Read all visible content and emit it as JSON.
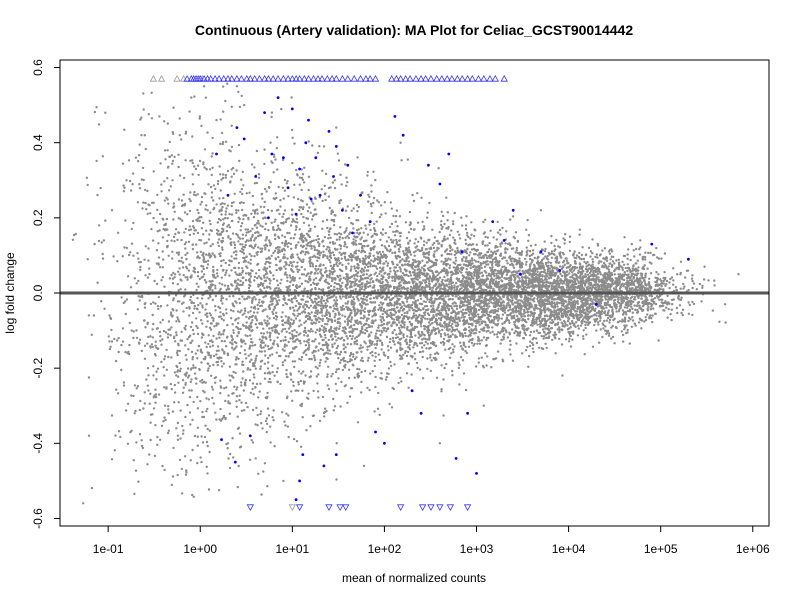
{
  "chart_data": {
    "type": "scatter",
    "title": "Continuous (Artery validation): MA Plot for Celiac_GCST90014442",
    "xlabel": "mean of normalized counts",
    "ylabel": "log fold change",
    "x_scale": "log10",
    "xlim": [
      0.03,
      1500000
    ],
    "ylim": [
      -0.62,
      0.62
    ],
    "x_ticks": [
      {
        "value": 0.1,
        "label": "1e-01"
      },
      {
        "value": 1,
        "label": "1e+00"
      },
      {
        "value": 10,
        "label": "1e+01"
      },
      {
        "value": 100,
        "label": "1e+02"
      },
      {
        "value": 1000,
        "label": "1e+03"
      },
      {
        "value": 10000,
        "label": "1e+04"
      },
      {
        "value": 100000,
        "label": "1e+05"
      },
      {
        "value": 1000000,
        "label": "1e+06"
      }
    ],
    "y_ticks": [
      {
        "value": -0.6,
        "label": "-0.6"
      },
      {
        "value": -0.4,
        "label": "-0.4"
      },
      {
        "value": -0.2,
        "label": "-0.2"
      },
      {
        "value": 0.0,
        "label": "0.0"
      },
      {
        "value": 0.2,
        "label": "0.2"
      },
      {
        "value": 0.4,
        "label": "0.4"
      },
      {
        "value": 0.6,
        "label": "0.6"
      }
    ],
    "reference_line": {
      "y": 0,
      "color": "#555555"
    },
    "colors": {
      "not_significant": "#8c8c8c",
      "significant": "#0000ff",
      "out_of_range_not_significant": "#9a9a9a",
      "out_of_range_significant": "#3333ff"
    },
    "grid": false,
    "legend": "none",
    "series": [
      {
        "significant": false,
        "points": [
          [
            0.06,
            0.09
          ],
          [
            0.07,
            -0.06
          ],
          [
            0.08,
            0.18
          ],
          [
            0.09,
            0.14
          ],
          [
            0.11,
            0.22
          ],
          [
            0.13,
            -0.12
          ],
          [
            0.15,
            0.28
          ],
          [
            0.16,
            0.12
          ],
          [
            0.18,
            -0.1
          ],
          [
            0.2,
            0.36
          ],
          [
            0.22,
            -0.02
          ],
          [
            0.25,
            0.42
          ],
          [
            0.27,
            -0.2
          ],
          [
            0.3,
            0.24
          ],
          [
            0.33,
            -0.27
          ],
          [
            0.36,
            0.47
          ],
          [
            0.4,
            0.17
          ],
          [
            0.45,
            -0.31
          ],
          [
            0.5,
            0.3
          ],
          [
            0.55,
            -0.36
          ],
          [
            0.6,
            0.42
          ],
          [
            0.7,
            -0.22
          ],
          [
            0.8,
            0.52
          ],
          [
            0.9,
            0.33
          ],
          [
            1.2,
            -0.48
          ],
          [
            1.5,
            0.46
          ],
          [
            2.0,
            -0.4
          ],
          [
            3.0,
            0.5
          ],
          [
            4.0,
            -0.44
          ],
          [
            6.0,
            0.48
          ],
          [
            8.0,
            -0.5
          ],
          [
            30,
            0.44
          ],
          [
            60,
            -0.46
          ],
          [
            150,
            0.4
          ],
          [
            400,
            -0.4
          ],
          [
            1200,
            -0.3
          ],
          [
            5000,
            0.22
          ],
          [
            20000,
            -0.1
          ],
          [
            60000,
            0.14
          ],
          [
            150000,
            -0.04
          ],
          [
            300000,
            0.07
          ],
          [
            500000,
            -0.03
          ],
          [
            700000,
            0.05
          ],
          [
            0.28,
            -0.43
          ],
          [
            1.1,
            0.55
          ],
          [
            2.5,
            0.55
          ]
        ]
      },
      {
        "significant": true,
        "points": [
          [
            1.5,
            0.37
          ],
          [
            2.0,
            0.26
          ],
          [
            2.5,
            0.44
          ],
          [
            3.0,
            0.41
          ],
          [
            3.5,
            -0.38
          ],
          [
            4.0,
            0.31
          ],
          [
            5.0,
            0.48
          ],
          [
            5.5,
            0.2
          ],
          [
            6.0,
            0.37
          ],
          [
            7.0,
            0.52
          ],
          [
            8.0,
            0.36
          ],
          [
            9.0,
            0.28
          ],
          [
            10,
            0.49
          ],
          [
            11,
            0.21
          ],
          [
            12,
            0.33
          ],
          [
            13,
            -0.43
          ],
          [
            14,
            0.4
          ],
          [
            15,
            0.46
          ],
          [
            16,
            0.25
          ],
          [
            18,
            0.36
          ],
          [
            20,
            0.26
          ],
          [
            22,
            -0.46
          ],
          [
            25,
            0.43
          ],
          [
            28,
            0.31
          ],
          [
            30,
            0.39
          ],
          [
            35,
            0.22
          ],
          [
            40,
            0.34
          ],
          [
            45,
            0.16
          ],
          [
            55,
            0.26
          ],
          [
            70,
            0.19
          ],
          [
            80,
            -0.37
          ],
          [
            100,
            -0.4
          ],
          [
            130,
            0.47
          ],
          [
            160,
            0.42
          ],
          [
            200,
            -0.26
          ],
          [
            250,
            -0.32
          ],
          [
            300,
            0.34
          ],
          [
            400,
            0.29
          ],
          [
            500,
            0.37
          ],
          [
            600,
            -0.44
          ],
          [
            700,
            0.11
          ],
          [
            800,
            -0.32
          ],
          [
            1000,
            -0.48
          ],
          [
            1500,
            0.19
          ],
          [
            2000,
            0.14
          ],
          [
            2500,
            0.22
          ],
          [
            3000,
            0.05
          ],
          [
            5000,
            0.11
          ],
          [
            8000,
            0.06
          ],
          [
            20000,
            -0.03
          ],
          [
            80000,
            0.13
          ],
          [
            200000,
            0.09
          ],
          [
            1.7,
            -0.39
          ],
          [
            2.4,
            -0.45
          ],
          [
            11,
            -0.55
          ],
          [
            12,
            -0.5
          ],
          [
            30,
            -0.43
          ]
        ]
      }
    ],
    "out_of_range_top": {
      "y": 0.57,
      "marker": "triangle-up",
      "grey_x": [
        0.31,
        0.38,
        0.56,
        0.66,
        1.05
      ],
      "blue_x": [
        0.72,
        0.8,
        0.85,
        0.9,
        0.95,
        1.0,
        1.1,
        1.2,
        1.3,
        1.45,
        1.6,
        1.8,
        2.0,
        2.2,
        2.5,
        2.8,
        3.2,
        3.5,
        3.9,
        4.4,
        5.0,
        5.5,
        6.2,
        7.0,
        8.0,
        9.0,
        10,
        11,
        12,
        13.5,
        15,
        17,
        19,
        21,
        24,
        27,
        30,
        35,
        40,
        47,
        55,
        63,
        70,
        80,
        120,
        135,
        150,
        170,
        190,
        220,
        250,
        280,
        320,
        370,
        420,
        480,
        540,
        620,
        700,
        800,
        900,
        1050,
        1200,
        1400,
        1600,
        2000
      ]
    },
    "out_of_range_bottom": {
      "y": -0.57,
      "marker": "triangle-down",
      "grey_x": [
        10
      ],
      "blue_x": [
        3.5,
        12,
        25,
        33,
        38,
        150,
        260,
        320,
        400,
        520,
        800
      ]
    }
  }
}
